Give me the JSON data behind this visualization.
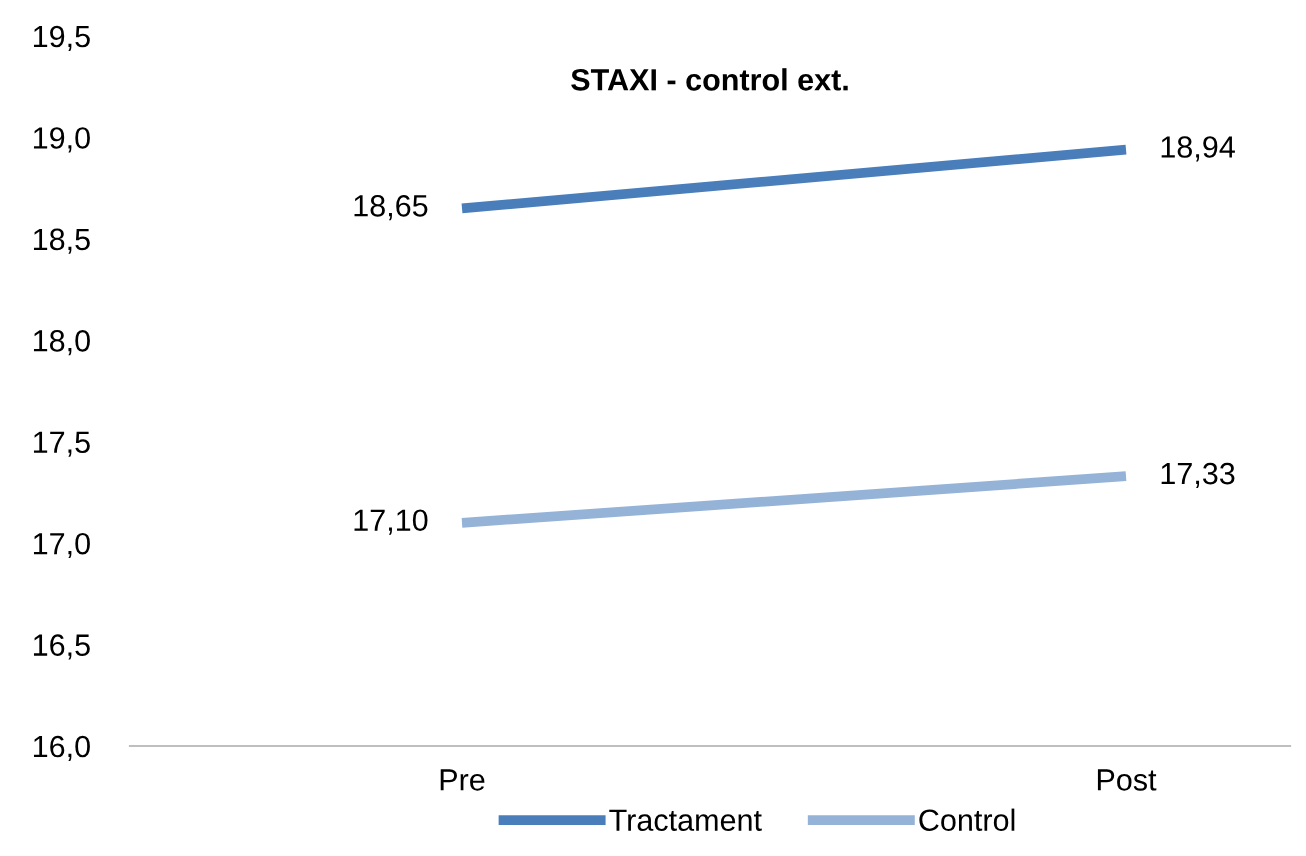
{
  "chart_data": {
    "type": "line",
    "title": "STAXI - control ext.",
    "categories": [
      "Pre",
      "Post"
    ],
    "series": [
      {
        "name": "Tractament",
        "color": "#4a7ebb",
        "values": [
          18.65,
          18.94
        ],
        "value_labels": [
          "18,65",
          "18,94"
        ]
      },
      {
        "name": "Control",
        "color": "#95b3d7",
        "values": [
          17.1,
          17.33
        ],
        "value_labels": [
          "17,10",
          "17,33"
        ]
      }
    ],
    "ylim": [
      16.0,
      19.5
    ],
    "yticks": [
      {
        "value": 16.0,
        "label": "16,0"
      },
      {
        "value": 16.5,
        "label": "16,5"
      },
      {
        "value": 17.0,
        "label": "17,0"
      },
      {
        "value": 17.5,
        "label": "17,5"
      },
      {
        "value": 18.0,
        "label": "18,0"
      },
      {
        "value": 18.5,
        "label": "18,5"
      },
      {
        "value": 19.0,
        "label": "19,0"
      },
      {
        "value": 19.5,
        "label": "19,5"
      }
    ],
    "grid": false,
    "legend": "bottom",
    "marker": "none",
    "line_style": "solid"
  }
}
